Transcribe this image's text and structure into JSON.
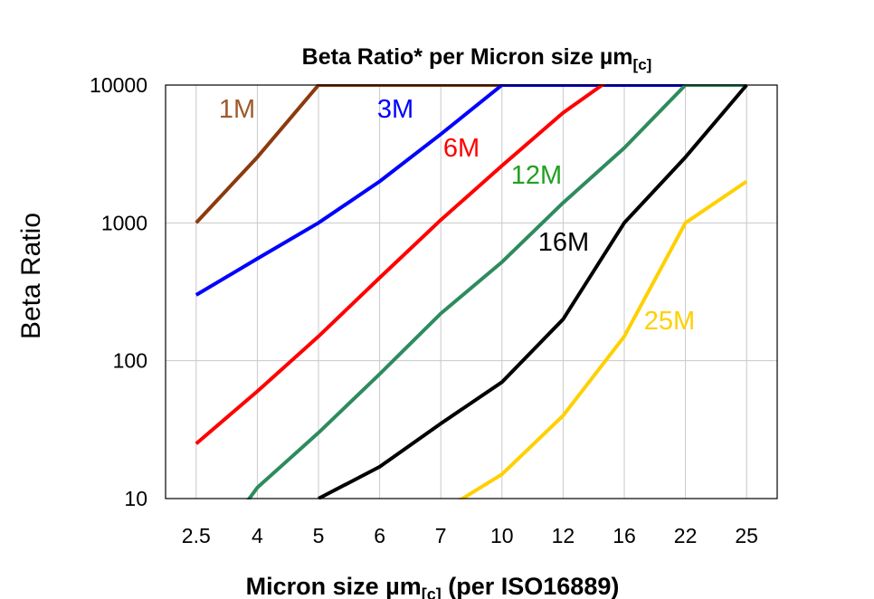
{
  "chart_data": {
    "type": "line",
    "title": "Beta Ratio* per Micron size µm",
    "title_subscript": "[c]",
    "xlabel": "Micron size µm",
    "xlabel_subscript": "[c]",
    "xlabel_suffix": " (per ISO16889)",
    "ylabel": "Beta Ratio",
    "y_scale": "log",
    "ylim": [
      10,
      10000
    ],
    "y_ticks": [
      "10",
      "100",
      "1000",
      "10000"
    ],
    "grid": true,
    "categories": [
      "2.5",
      "4",
      "5",
      "6",
      "7",
      "10",
      "12",
      "16",
      "22",
      "25"
    ],
    "series": [
      {
        "name": "1M",
        "color": "#8B3A0E",
        "label_color": "#9C5A2A",
        "values": [
          1000,
          3000,
          10000,
          10000,
          10000,
          10000,
          null,
          null,
          null,
          null
        ]
      },
      {
        "name": "3M",
        "color": "#0000FF",
        "label_color": "#0000FF",
        "values": [
          300,
          550,
          1000,
          2000,
          4400,
          10000,
          10000,
          10000,
          10000,
          null
        ]
      },
      {
        "name": "6M",
        "color": "#FF0000",
        "label_color": "#FF0000",
        "values": [
          25,
          60,
          150,
          400,
          1050,
          2600,
          6300,
          13000,
          null,
          null
        ]
      },
      {
        "name": "12M",
        "color": "#2E8B5E",
        "label_color": "#22A022",
        "values": [
          3,
          12,
          30,
          80,
          220,
          520,
          1400,
          3500,
          10000,
          10000
        ]
      },
      {
        "name": "16M",
        "color": "#000000",
        "label_color": "#000000",
        "values": [
          null,
          null,
          10,
          17,
          35,
          70,
          200,
          1000,
          3000,
          10000
        ]
      },
      {
        "name": "25M",
        "color": "#FFD000",
        "label_color": "#FFD000",
        "values": [
          null,
          null,
          null,
          null,
          8,
          15,
          40,
          150,
          1000,
          2000
        ]
      }
    ]
  }
}
